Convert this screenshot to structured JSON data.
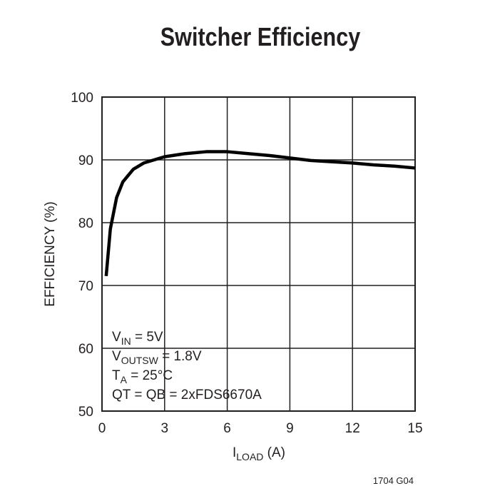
{
  "chart_data": {
    "type": "line",
    "title": "Switcher Efficiency",
    "x_label": {
      "base": "I",
      "sub": "LOAD",
      "text": " (A)"
    },
    "y_label": "EFFICIENCY (%)",
    "x": [
      0.2,
      0.4,
      0.7,
      1,
      1.5,
      2,
      3,
      4,
      5,
      6,
      7,
      8,
      9,
      10,
      11,
      12,
      13,
      14,
      15
    ],
    "series": [
      {
        "color": "#000000",
        "values": [
          71.5,
          79,
          84,
          86.5,
          88.5,
          89.5,
          90.5,
          91,
          91.3,
          91.3,
          91,
          90.7,
          90.3,
          89.9,
          89.7,
          89.5,
          89.2,
          89,
          88.7
        ]
      }
    ],
    "xlim": [
      0,
      15
    ],
    "xticks": [
      0,
      3,
      6,
      9,
      12,
      15
    ],
    "ylim": [
      50,
      100
    ],
    "yticks": [
      50,
      60,
      70,
      80,
      90,
      100
    ],
    "grid": true,
    "annotations": [
      {
        "base": "V",
        "sub": "IN",
        "text": " = 5V"
      },
      {
        "base": "V",
        "sub": "OUTSW",
        "text": " = 1.8V"
      },
      {
        "base": "T",
        "sub": "A",
        "text": " = 25°C"
      },
      {
        "base": "QT = QB = 2xFDS6670A"
      }
    ],
    "footnote": "1704 G04"
  }
}
